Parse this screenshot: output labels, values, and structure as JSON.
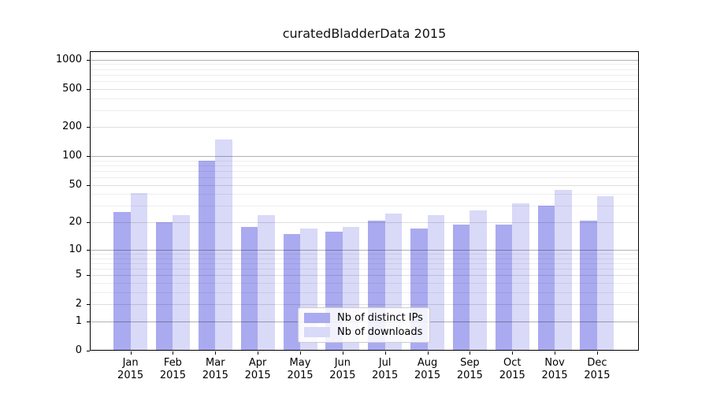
{
  "chart_data": {
    "type": "bar",
    "title": "curatedBladderData 2015",
    "categories": [
      "Jan",
      "Feb",
      "Mar",
      "Apr",
      "May",
      "Jun",
      "Jul",
      "Aug",
      "Sep",
      "Oct",
      "Nov",
      "Dec"
    ],
    "category_year": "2015",
    "series": [
      {
        "name": "Nb of distinct IPs",
        "color": "#aaaaf0",
        "values": [
          26,
          20,
          90,
          18,
          15,
          16,
          21,
          17,
          19,
          19,
          30,
          21
        ]
      },
      {
        "name": "Nb of downloads",
        "color": "#d9d9f8",
        "values": [
          41,
          24,
          150,
          24,
          17,
          18,
          25,
          24,
          27,
          32,
          44,
          38
        ]
      }
    ],
    "y_scale": "log1p",
    "ylim": [
      0,
      1220
    ],
    "y_ticks": [
      0,
      1,
      2,
      5,
      10,
      20,
      50,
      100,
      200,
      500,
      1000
    ],
    "y_major_dark_gridlines": [
      1,
      10,
      100,
      1000
    ],
    "y_major_light_gridlines": [
      2,
      5,
      20,
      50,
      200,
      500
    ],
    "y_minor_gridlines": [
      3,
      4,
      6,
      7,
      8,
      9,
      30,
      40,
      60,
      70,
      80,
      90,
      300,
      400,
      600,
      700,
      800,
      900
    ],
    "grid": true,
    "legend_position": "lower center"
  }
}
